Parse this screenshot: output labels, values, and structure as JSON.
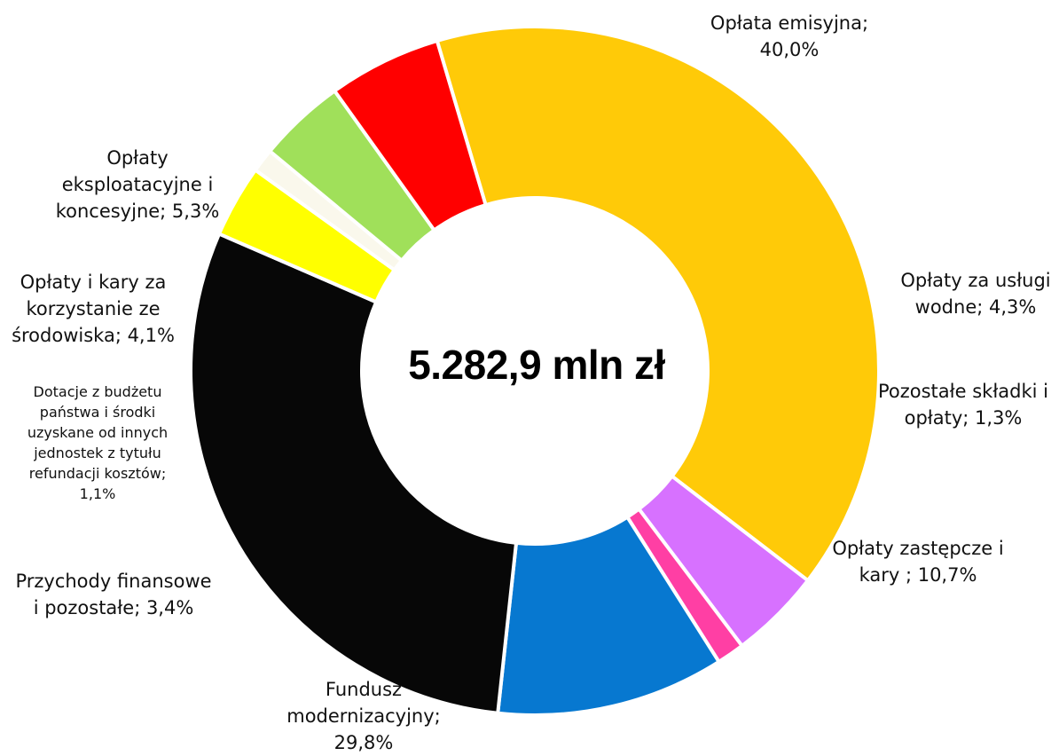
{
  "chart_data": {
    "type": "pie",
    "variant": "donut",
    "center_label": "5.282,9 mln zł",
    "slices": [
      {
        "name": "Opłata emisyjna",
        "value": 40.0,
        "color": "#FFCA08",
        "label_lines": [
          "Opłata emisyjna;",
          "40,0%"
        ]
      },
      {
        "name": "Opłaty za usługi wodne",
        "value": 4.3,
        "color": "#D771FF",
        "label_lines": [
          "Opłaty za usługi",
          "wodne; 4,3%"
        ]
      },
      {
        "name": "Pozostałe składki i opłaty",
        "value": 1.3,
        "color": "#FF3FA4",
        "label_lines": [
          "Pozostałe składki i",
          "opłaty; 1,3%"
        ]
      },
      {
        "name": "Opłaty zastępcze i kary",
        "value": 10.7,
        "color": "#0778D0",
        "label_lines": [
          "Opłaty zastępcze i",
          "kary ; 10,7%"
        ]
      },
      {
        "name": "Fundusz modernizacyjny",
        "value": 29.8,
        "color": "#070707",
        "label_lines": [
          "Fundusz",
          "modernizacyjny;",
          "29,8%"
        ]
      },
      {
        "name": "Przychody finansowe i pozostałe",
        "value": 3.4,
        "color": "#FFFF00",
        "label_lines": [
          "Przychody finansowe",
          "i pozostałe; 3,4%"
        ]
      },
      {
        "name": "Dotacje z budżetu państwa i środki uzyskane od innych jednostek z tytułu refundacji kosztów",
        "value": 1.1,
        "color": "#FAF8EC",
        "label_lines": [
          "Dotacje z budżetu",
          "państwa i środki",
          "uzyskane od innych",
          "jednostek z tytułu",
          "refundacji kosztów;",
          "1,1%"
        ]
      },
      {
        "name": "Opłaty i kary za korzystanie ze środowiska",
        "value": 4.1,
        "color": "#A0E05A",
        "label_lines": [
          "Opłaty i kary za",
          "korzystanie ze",
          "środowiska; 4,1%"
        ]
      },
      {
        "name": "Opłaty eksploatacyjne i koncesyjne",
        "value": 5.3,
        "color": "#FF0000",
        "label_lines": [
          "Opłaty",
          "eksploatacyjne i",
          "koncesyjne; 5,3%"
        ]
      }
    ]
  }
}
